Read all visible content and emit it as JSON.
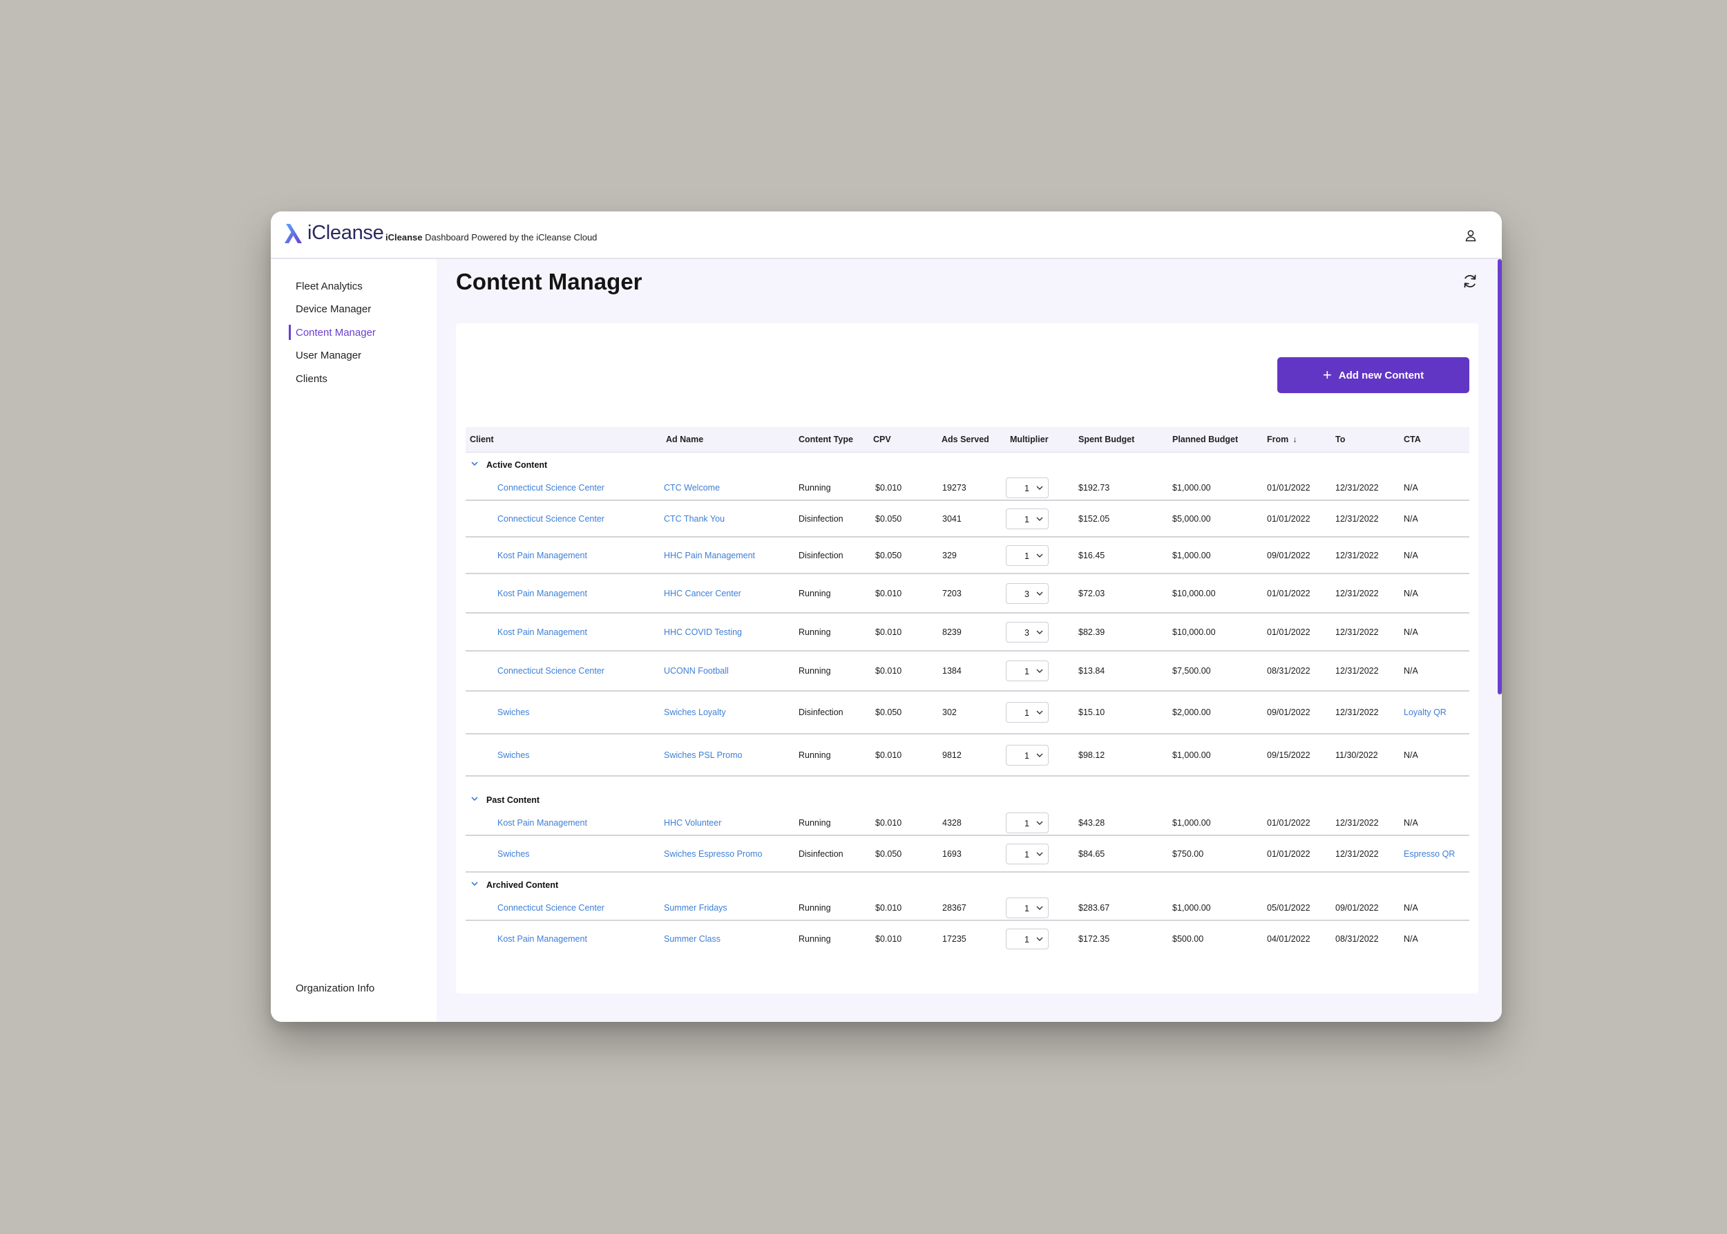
{
  "app": {
    "logo_text": "iCleanse",
    "tagline_brand": "iCleanse",
    "tagline_rest": " Dashboard Powered by the iCleanse Cloud"
  },
  "sidebar": {
    "items": [
      {
        "label": "Fleet Analytics"
      },
      {
        "label": "Device Manager"
      },
      {
        "label": "Content Manager"
      },
      {
        "label": "User Manager"
      },
      {
        "label": "Clients"
      }
    ],
    "footer": "Organization Info"
  },
  "page": {
    "title": "Content Manager",
    "add_button": "Add new Content"
  },
  "table": {
    "headers": {
      "client": "Client",
      "ad_name": "Ad Name",
      "content_type": "Content Type",
      "cpv": "CPV",
      "ads_served": "Ads Served",
      "multiplier": "Multiplier",
      "spent_budget": "Spent Budget",
      "planned_budget": "Planned Budget",
      "from": "From",
      "to": "To",
      "cta": "CTA"
    },
    "groups": {
      "active": "Active Content",
      "past": "Past Content",
      "archived": "Archived Content"
    },
    "active": [
      {
        "client": "Connecticut Science Center",
        "ad": "CTC Welcome",
        "type": "Running",
        "cpv": "$0.010",
        "served": "19273",
        "mult": "1",
        "spent": "$192.73",
        "planned": "$1,000.00",
        "from": "01/01/2022",
        "to": "12/31/2022",
        "cta": "N/A"
      },
      {
        "client": "Connecticut Science Center",
        "ad": "CTC Thank You",
        "type": "Disinfection",
        "cpv": "$0.050",
        "served": "3041",
        "mult": "1",
        "spent": "$152.05",
        "planned": "$5,000.00",
        "from": "01/01/2022",
        "to": "12/31/2022",
        "cta": "N/A"
      },
      {
        "client": "Kost Pain Management",
        "ad": "HHC Pain Management",
        "type": "Disinfection",
        "cpv": "$0.050",
        "served": "329",
        "mult": "1",
        "spent": "$16.45",
        "planned": "$1,000.00",
        "from": "09/01/2022",
        "to": "12/31/2022",
        "cta": "N/A"
      },
      {
        "client": "Kost Pain Management",
        "ad": "HHC Cancer Center",
        "type": "Running",
        "cpv": "$0.010",
        "served": "7203",
        "mult": "3",
        "spent": "$72.03",
        "planned": "$10,000.00",
        "from": "01/01/2022",
        "to": "12/31/2022",
        "cta": "N/A"
      },
      {
        "client": "Kost Pain Management",
        "ad": "HHC COVID Testing",
        "type": "Running",
        "cpv": "$0.010",
        "served": "8239",
        "mult": "3",
        "spent": "$82.39",
        "planned": "$10,000.00",
        "from": "01/01/2022",
        "to": "12/31/2022",
        "cta": "N/A"
      },
      {
        "client": "Connecticut Science Center",
        "ad": "UCONN Football",
        "type": "Running",
        "cpv": "$0.010",
        "served": "1384",
        "mult": "1",
        "spent": "$13.84",
        "planned": "$7,500.00",
        "from": "08/31/2022",
        "to": "12/31/2022",
        "cta": "N/A"
      },
      {
        "client": "Swiches",
        "ad": "Swiches Loyalty",
        "type": "Disinfection",
        "cpv": "$0.050",
        "served": "302",
        "mult": "1",
        "spent": "$15.10",
        "planned": "$2,000.00",
        "from": "09/01/2022",
        "to": "12/31/2022",
        "cta": "Loyalty QR"
      },
      {
        "client": "Swiches",
        "ad": "Swiches PSL Promo",
        "type": "Running",
        "cpv": "$0.010",
        "served": "9812",
        "mult": "1",
        "spent": "$98.12",
        "planned": "$1,000.00",
        "from": "09/15/2022",
        "to": "11/30/2022",
        "cta": "N/A"
      }
    ],
    "past": [
      {
        "client": "Kost Pain Management",
        "ad": "HHC Volunteer",
        "type": "Running",
        "cpv": "$0.010",
        "served": "4328",
        "mult": "1",
        "spent": "$43.28",
        "planned": "$1,000.00",
        "from": "01/01/2022",
        "to": "12/31/2022",
        "cta": "N/A"
      },
      {
        "client": "Swiches",
        "ad": "Swiches Espresso Promo",
        "type": "Disinfection",
        "cpv": "$0.050",
        "served": "1693",
        "mult": "1",
        "spent": "$84.65",
        "planned": "$750.00",
        "from": "01/01/2022",
        "to": "12/31/2022",
        "cta": "Espresso QR"
      }
    ],
    "archived": [
      {
        "client": "Connecticut Science Center",
        "ad": "Summer Fridays",
        "type": "Running",
        "cpv": "$0.010",
        "served": "28367",
        "mult": "1",
        "spent": "$283.67",
        "planned": "$1,000.00",
        "from": "05/01/2022",
        "to": "09/01/2022",
        "cta": "N/A"
      },
      {
        "client": "Kost Pain Management",
        "ad": "Summer Class",
        "type": "Running",
        "cpv": "$0.010",
        "served": "17235",
        "mult": "1",
        "spent": "$172.35",
        "planned": "$500.00",
        "from": "04/01/2022",
        "to": "08/31/2022",
        "cta": "N/A"
      }
    ]
  },
  "colors": {
    "accent": "#6236c4",
    "link": "#3d7fd6",
    "background": "#c0bdb6",
    "main_bg": "#f6f5fd"
  },
  "icons": {
    "logo": "icleanse-lambda-icon",
    "user": "user-icon",
    "refresh": "refresh-icon",
    "add": "plus-icon",
    "sort": "arrow-down-icon",
    "group_toggle": "chevron-down-icon"
  }
}
